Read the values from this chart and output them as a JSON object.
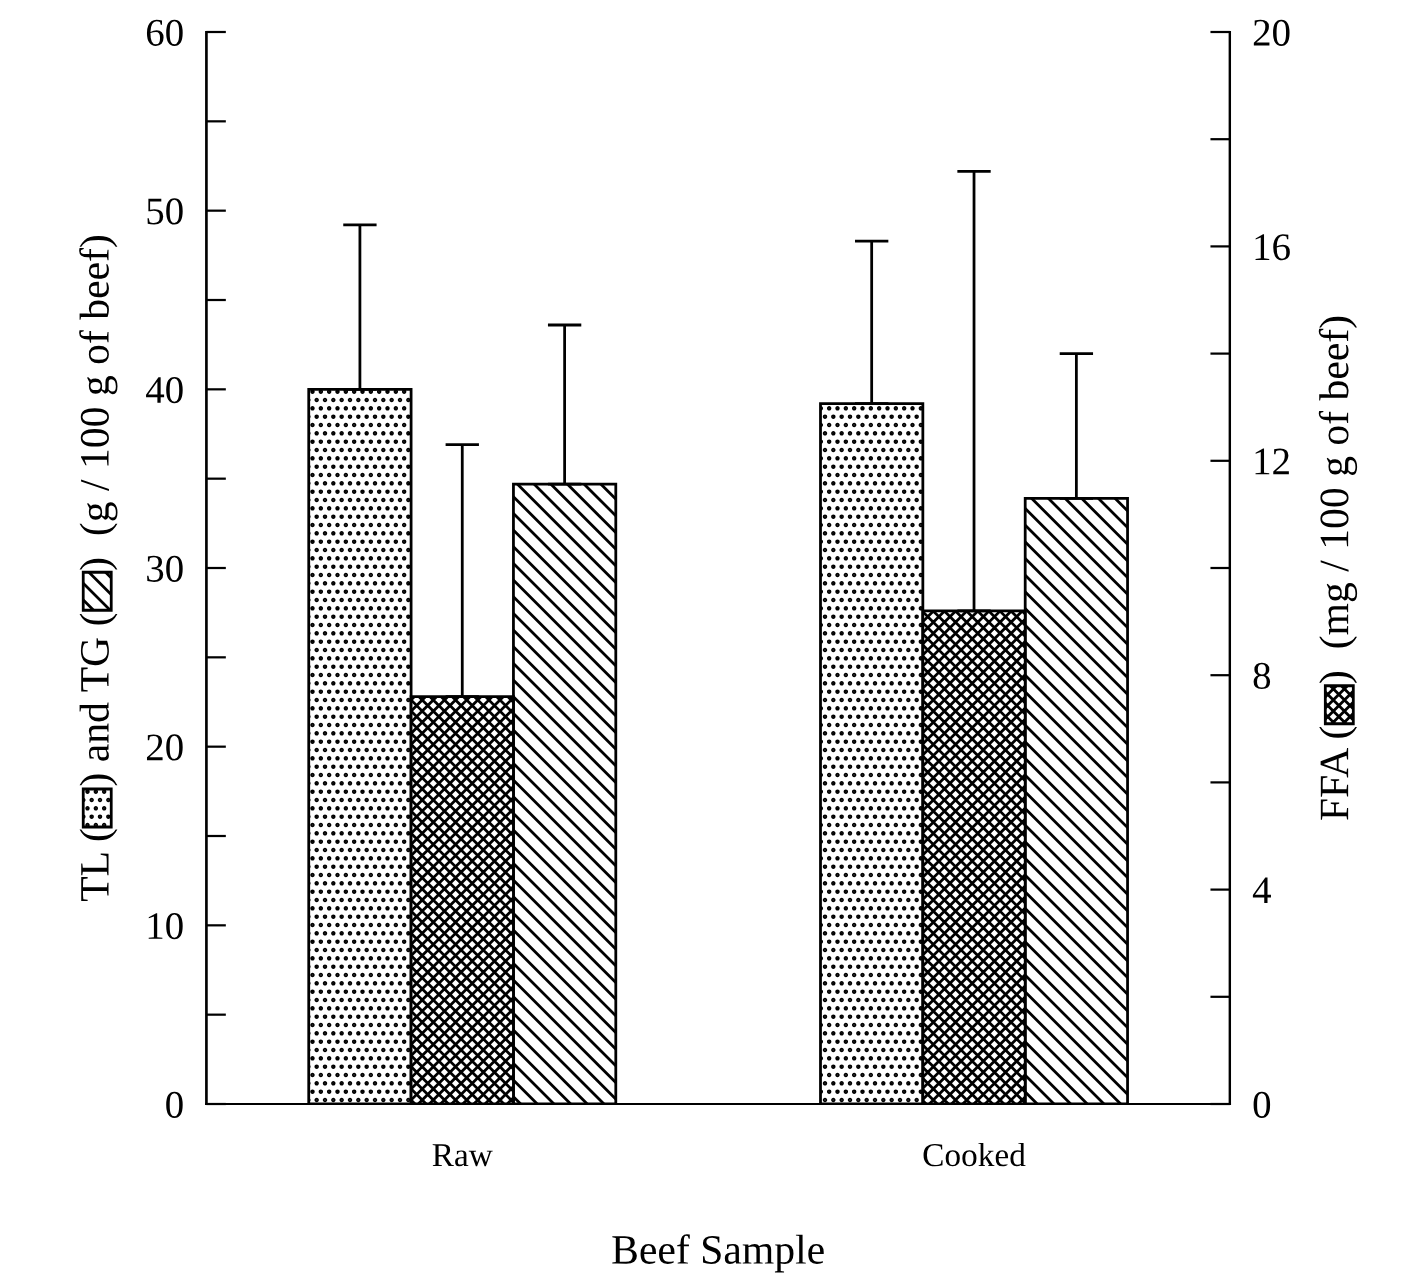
{
  "chart_data": {
    "type": "bar",
    "xlabel": "Beef Sample",
    "ylabel": "TL (    ) and TG (    )  (g / 100 g of beef)",
    "y2label": "FFA (    )  (mg / 100 g of beef)",
    "categories": [
      "Raw",
      "Cooked"
    ],
    "series": [
      {
        "color": "#000000",
        "values": [
          40.0,
          39.2
        ],
        "errors": [
          [
            40.0,
            49.2
          ],
          [
            39.2,
            48.3
          ]
        ]
      },
      {
        "color": "#000000",
        "axis": "y2",
        "values": [
          7.6,
          9.2
        ],
        "errors": [
          [
            7.6,
            12.3
          ],
          [
            9.2,
            17.4
          ]
        ]
      },
      {
        "color": "#000000",
        "values": [
          34.7,
          33.9
        ],
        "errors": [
          [
            34.7,
            43.6
          ],
          [
            33.9,
            42.0
          ]
        ]
      }
    ],
    "ylim": [
      0,
      60
    ],
    "yticks": [
      0,
      {
        "value": 5,
        "label": null
      },
      10,
      {
        "value": 15,
        "label": null
      },
      20,
      {
        "value": 25,
        "label": null
      },
      30,
      {
        "value": 35,
        "label": null
      },
      40,
      {
        "value": 45,
        "label": null
      },
      50,
      {
        "value": 55,
        "label": null
      },
      60
    ],
    "y2lim": [
      0,
      20
    ],
    "y2ticks": [
      0,
      {
        "value": 2,
        "label": null
      },
      4,
      {
        "value": 6,
        "label": null
      },
      8,
      {
        "value": 10,
        "label": null
      },
      12,
      {
        "value": 14,
        "label": null
      },
      16,
      {
        "value": 18,
        "label": null
      },
      20
    ],
    "grid": false,
    "legend": false
  }
}
